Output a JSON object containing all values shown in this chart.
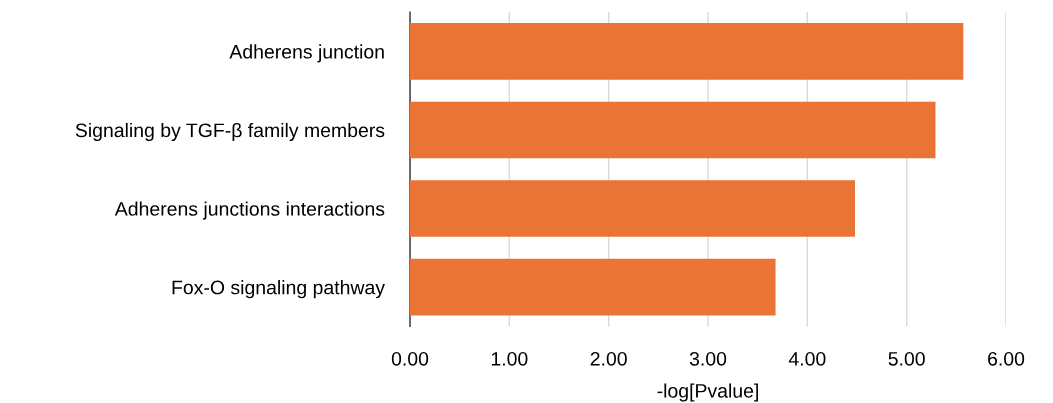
{
  "chart_data": {
    "type": "bar",
    "orientation": "horizontal",
    "xlabel": "-log[Pvalue]",
    "categories": [
      "Adherens junction",
      "Signaling by TGF-β family members",
      "Adherens junctions interactions",
      "Fox-O signaling pathway"
    ],
    "values": [
      5.57,
      5.29,
      4.48,
      3.68
    ],
    "color": "#e97436",
    "xlim": [
      0,
      6
    ],
    "xticks": [
      {
        "value": 0,
        "label": "0.00"
      },
      {
        "value": 1,
        "label": "1.00"
      },
      {
        "value": 2,
        "label": "2.00"
      },
      {
        "value": 3,
        "label": "3.00"
      },
      {
        "value": 4,
        "label": "4.00"
      },
      {
        "value": 5,
        "label": "5.00"
      },
      {
        "value": 6,
        "label": "6.00"
      }
    ],
    "grid": "x"
  }
}
